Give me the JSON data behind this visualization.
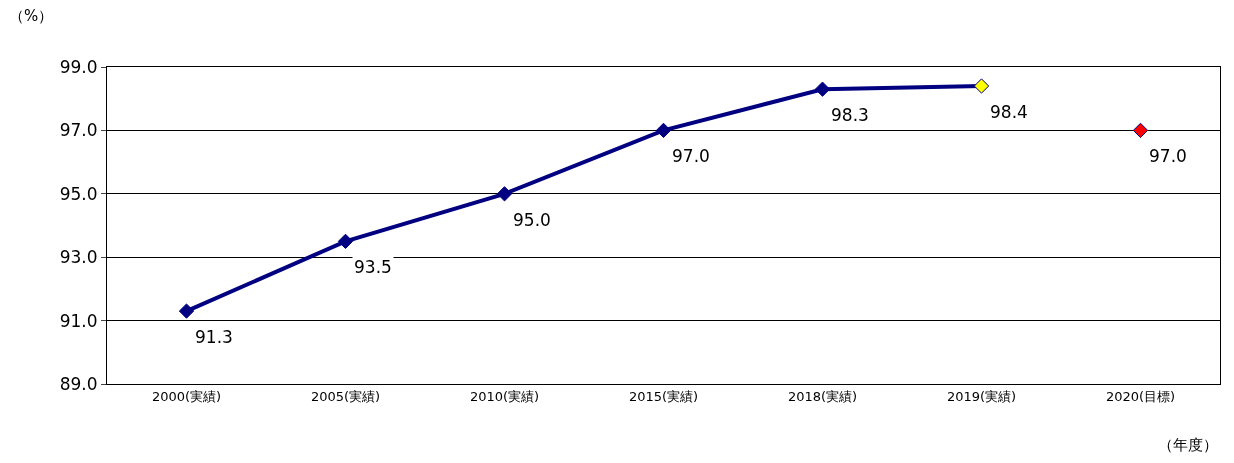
{
  "chart_data": {
    "type": "line",
    "ylabel": "（%）",
    "xlabel": "（年度）",
    "categories": [
      "2000(実績)",
      "2005(実績)",
      "2010(実績)",
      "2015(実績)",
      "2018(実績)",
      "2019(実績)",
      "2020(目標)"
    ],
    "series": [
      {
        "color": "#000080",
        "colors": [
          "#000080",
          "#000080",
          "#000080",
          "#000080",
          "#000080",
          "#ffff00",
          null
        ],
        "values": [
          91.3,
          93.5,
          95.0,
          97.0,
          98.3,
          98.4,
          null
        ],
        "value_labels": [
          "91.3",
          "93.5",
          "95.0",
          "97.0",
          "98.3",
          "98.4",
          null
        ]
      },
      {
        "type": "scatter",
        "color": "#ff0000",
        "values": [
          null,
          null,
          null,
          null,
          null,
          null,
          97.0
        ],
        "value_labels": [
          null,
          null,
          null,
          null,
          null,
          null,
          "97.0"
        ]
      }
    ],
    "ylim": [
      89,
      99
    ],
    "yticks": [
      {
        "value": 89,
        "label": "89.0"
      },
      {
        "value": 91,
        "label": "91.0"
      },
      {
        "value": 93,
        "label": "93.0"
      },
      {
        "value": 95,
        "label": "95.0"
      },
      {
        "value": 97,
        "label": "97.0"
      },
      {
        "value": 99,
        "label": "99.0"
      }
    ],
    "grid": "y",
    "marker": "diamond",
    "line_style": "solid"
  }
}
